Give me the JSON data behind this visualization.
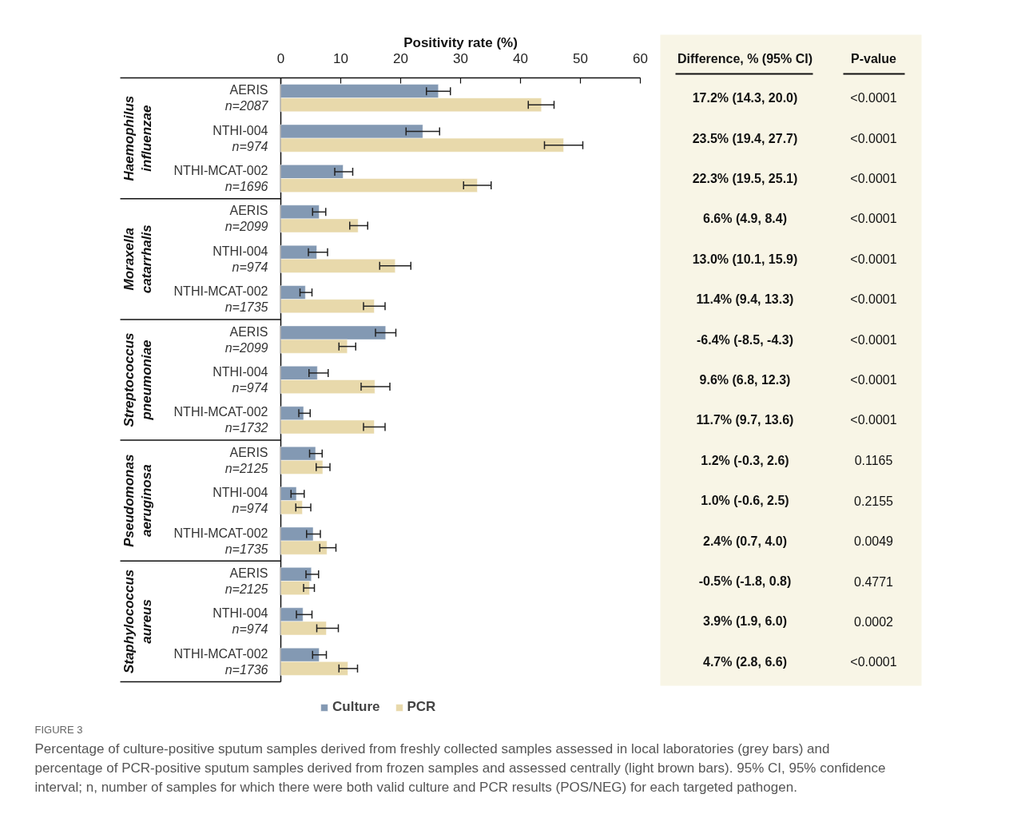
{
  "chart_data": [
    {
      "type": "bar",
      "orientation": "horizontal",
      "xlabel": "Positivity rate (%)",
      "xlim": [
        0,
        60
      ],
      "xticks": [
        0,
        10,
        20,
        30,
        40,
        50,
        60
      ],
      "legend": "bottom",
      "categories": [
        "AERIS\nn=2087",
        "NTHI-004\nn=974",
        "NTHI-MCAT-002\nn=1696",
        "AERIS\nn=2099",
        "NTHI-004\nn=974",
        "NTHI-MCAT-002\nn=1735",
        "AERIS\nn=2099",
        "NTHI-004\nn=974",
        "NTHI-MCAT-002\nn=1732",
        "AERIS\nn=2125",
        "NTHI-004\nn=974",
        "NTHI-MCAT-002\nn=1735",
        "AERIS\nn=2125",
        "NTHI-004\nn=974",
        "NTHI-MCAT-002\nn=1736"
      ],
      "series": [
        {
          "name": "Culture",
          "color": "#8399b3",
          "values": [
            26.3,
            23.7,
            10.4,
            6.4,
            6.0,
            4.1,
            17.5,
            6.1,
            3.8,
            5.8,
            2.6,
            5.4,
            5.1,
            3.7,
            6.4
          ],
          "errors": [
            [
              24.3,
              28.3
            ],
            [
              20.9,
              26.5
            ],
            [
              9.0,
              12.0
            ],
            [
              5.3,
              7.5
            ],
            [
              4.6,
              7.8
            ],
            [
              3.2,
              5.2
            ],
            [
              15.8,
              19.2
            ],
            [
              4.7,
              7.9
            ],
            [
              3.0,
              4.9
            ],
            [
              4.8,
              6.9
            ],
            [
              1.7,
              3.9
            ],
            [
              4.3,
              6.6
            ],
            [
              4.2,
              6.3
            ],
            [
              2.6,
              5.2
            ],
            [
              5.3,
              7.6
            ]
          ]
        },
        {
          "name": "PCR",
          "color": "#e8d9ab",
          "values": [
            43.5,
            47.2,
            32.8,
            12.9,
            19.1,
            15.6,
            11.1,
            15.7,
            15.6,
            7.0,
            3.6,
            7.7,
            4.8,
            7.6,
            11.2
          ],
          "errors": [
            [
              41.3,
              45.6
            ],
            [
              44.0,
              50.4
            ],
            [
              30.5,
              35.1
            ],
            [
              11.5,
              14.5
            ],
            [
              16.5,
              21.7
            ],
            [
              13.8,
              17.4
            ],
            [
              9.7,
              12.5
            ],
            [
              13.4,
              18.2
            ],
            [
              13.8,
              17.4
            ],
            [
              5.9,
              8.2
            ],
            [
              2.5,
              5.0
            ],
            [
              6.5,
              9.2
            ],
            [
              3.8,
              5.6
            ],
            [
              6.0,
              9.6
            ],
            [
              9.7,
              12.8
            ]
          ]
        }
      ],
      "annotations": [
        "Haemophilus influenzae",
        "Moraxella catarrhalis",
        "Streptococcus pneumoniae",
        "Pseudomonas aeruginosa",
        "Staphylococcus aureus",
        "FIGURE 3",
        "Percentage of culture-positive sputum samples derived from freshly collected samples assessed in local laboratories (grey bars) and percentage of PCR-positive sputum samples derived from frozen samples and assessed centrally (light brown bars). 95% CI, 95% confidence interval; n, number of samples for which there were both valid culture and PCR results (POS/NEG) for each targeted pathogen."
      ]
    },
    {
      "type": "other",
      "annotations": [
        "Difference, % (95% CI)",
        "P-value",
        "17.2% (14.3, 20.0)",
        "<0.0001",
        "23.5% (19.4, 27.7)",
        "<0.0001",
        "22.3% (19.5, 25.1)",
        "<0.0001",
        "6.6% (4.9, 8.4)",
        "<0.0001",
        "13.0% (10.1, 15.9)",
        "<0.0001",
        "11.4% (9.4, 13.3)",
        "<0.0001",
        "-6.4% (-8.5, -4.3)",
        "<0.0001",
        "9.6% (6.8, 12.3)",
        "<0.0001",
        "11.7% (9.7, 13.6)",
        "<0.0001",
        "1.2% (-0.3, 2.6)",
        "0.1165",
        "1.0% (-0.6, 2.5)",
        "0.2155",
        "2.4% (0.7, 4.0)",
        "0.0049",
        "-0.5% (-1.8, 0.8)",
        "0.4771",
        "3.9% (1.9, 6.0)",
        "0.0002",
        "4.7% (2.8, 6.6)",
        "<0.0001"
      ]
    }
  ]
}
